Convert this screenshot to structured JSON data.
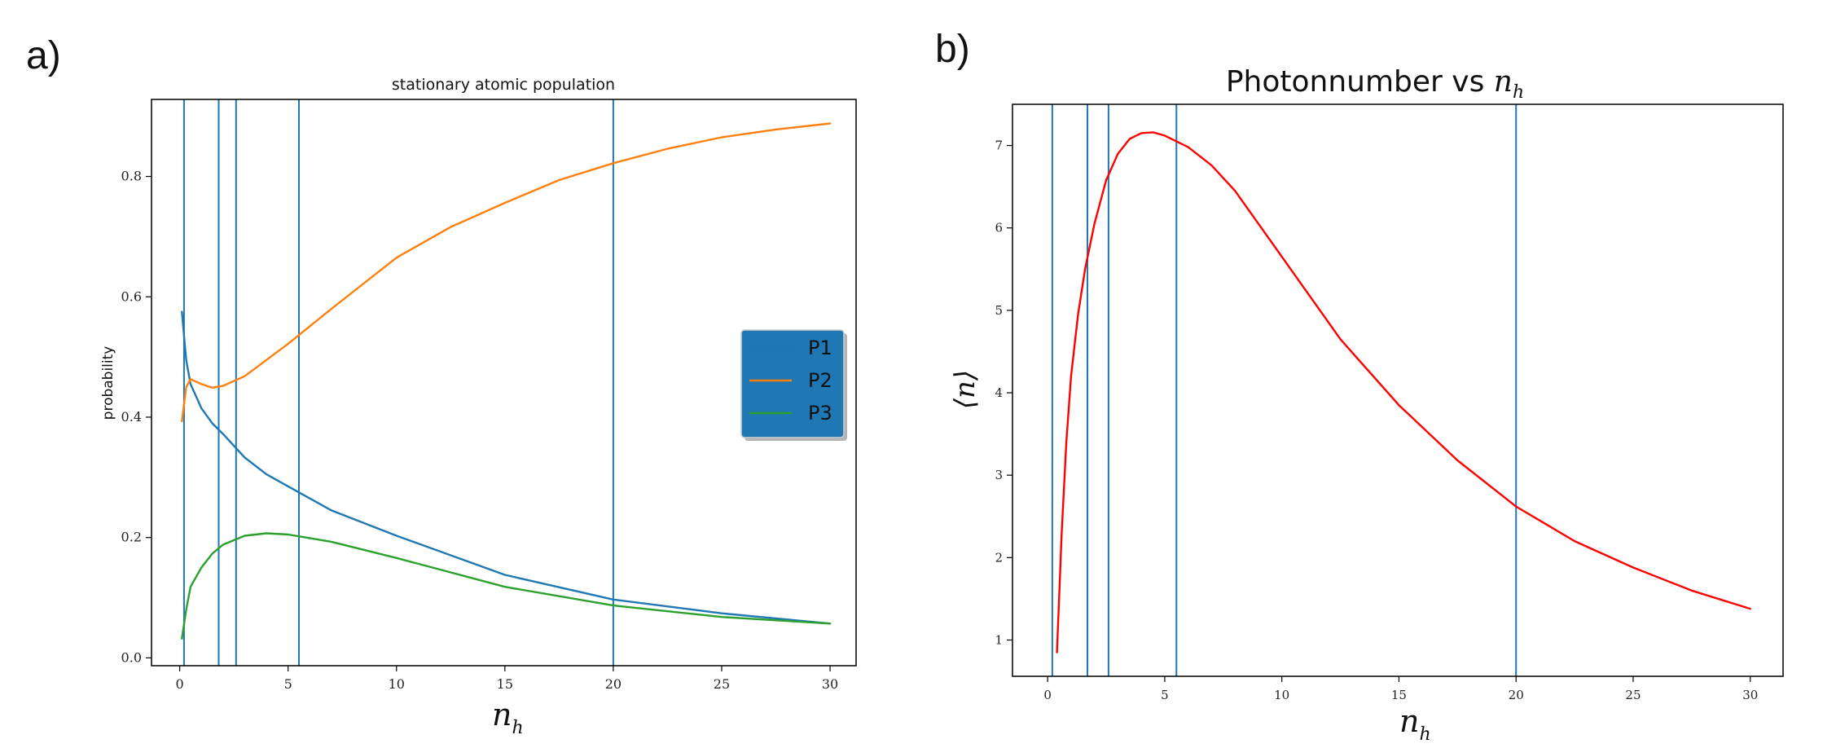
{
  "panel_labels": {
    "a": "a)",
    "b": "b)"
  },
  "chart_data": [
    {
      "type": "line",
      "title": "stationary atomic population",
      "xlabel": "n",
      "xlabel_sub": "h",
      "ylabel": "probability",
      "xlim": [
        -1.3,
        31.2
      ],
      "ylim": [
        -0.013,
        0.928
      ],
      "xticks": [
        0,
        5,
        10,
        15,
        20,
        25,
        30
      ],
      "yticks": [
        0.0,
        0.2,
        0.4,
        0.6,
        0.8
      ],
      "ytick_labels": [
        "0.0",
        "0.2",
        "0.4",
        "0.6",
        "0.8"
      ],
      "vlines": [
        0.2,
        1.8,
        2.6,
        5.5,
        20.0
      ],
      "vline_color": "#1f77b4",
      "legend": {
        "location": "center-right",
        "bg": "#1f77b4"
      },
      "series": [
        {
          "name": "P1",
          "color": "#1f77b4",
          "x": [
            0.1,
            0.3,
            0.5,
            1,
            1.5,
            2,
            3,
            4,
            5,
            7,
            10,
            15,
            20,
            25,
            30
          ],
          "y": [
            0.575,
            0.495,
            0.455,
            0.415,
            0.39,
            0.372,
            0.333,
            0.305,
            0.285,
            0.245,
            0.203,
            0.138,
            0.097,
            0.074,
            0.057
          ]
        },
        {
          "name": "P2",
          "color": "#ff7f0e",
          "x": [
            0.1,
            0.3,
            0.5,
            1,
            1.5,
            2,
            3,
            4,
            5,
            7,
            10,
            12.5,
            15,
            17.5,
            20,
            22.5,
            25,
            27.5,
            30
          ],
          "y": [
            0.393,
            0.45,
            0.463,
            0.455,
            0.449,
            0.452,
            0.468,
            0.495,
            0.522,
            0.58,
            0.665,
            0.716,
            0.756,
            0.794,
            0.822,
            0.846,
            0.865,
            0.878,
            0.888
          ]
        },
        {
          "name": "P3",
          "color": "#2ca02c",
          "x": [
            0.1,
            0.3,
            0.5,
            1,
            1.5,
            2,
            3,
            4,
            5,
            7,
            10,
            15,
            20,
            25,
            30
          ],
          "y": [
            0.032,
            0.08,
            0.118,
            0.15,
            0.173,
            0.188,
            0.203,
            0.207,
            0.205,
            0.193,
            0.166,
            0.118,
            0.087,
            0.068,
            0.057
          ]
        }
      ]
    },
    {
      "type": "line",
      "title": "Photonnumber vs",
      "title_math": "n",
      "title_math_sub": "h",
      "xlabel": "n",
      "xlabel_sub": "h",
      "ylabel": "⟨n⟩",
      "xlim": [
        -1.5,
        31.4
      ],
      "ylim": [
        0.56,
        7.5
      ],
      "xticks": [
        0,
        5,
        10,
        15,
        20,
        25,
        30
      ],
      "yticks": [
        1,
        2,
        3,
        4,
        5,
        6,
        7
      ],
      "vlines": [
        0.2,
        1.7,
        2.6,
        5.5,
        20.0
      ],
      "vline_color": "#1f77b4",
      "series": [
        {
          "name": "",
          "color": "#ff0000",
          "x": [
            0.4,
            0.6,
            0.8,
            1.0,
            1.3,
            1.6,
            2.0,
            2.5,
            3.0,
            3.5,
            4.0,
            4.5,
            5.0,
            6,
            7,
            8,
            10,
            12.5,
            15,
            17.5,
            20,
            22.5,
            25,
            27.5,
            30
          ],
          "y": [
            0.85,
            2.3,
            3.4,
            4.2,
            4.95,
            5.5,
            6.05,
            6.58,
            6.9,
            7.08,
            7.15,
            7.16,
            7.12,
            6.98,
            6.76,
            6.45,
            5.65,
            4.65,
            3.85,
            3.18,
            2.62,
            2.2,
            1.88,
            1.6,
            1.38
          ]
        }
      ]
    }
  ]
}
